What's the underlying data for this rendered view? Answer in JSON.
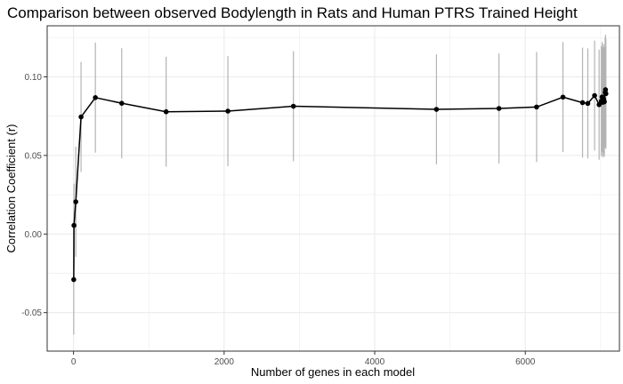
{
  "chart_data": {
    "type": "line",
    "title": "Comparison between observed Bodylength in Rats and Human PTRS Trained Height",
    "xlabel": "Number of genes in each model",
    "ylabel": "Correlation Coefficient (r)",
    "xlim": [
      -350,
      7250
    ],
    "ylim": [
      -0.0745,
      0.1325
    ],
    "x_ticks": [
      0,
      2000,
      4000,
      6000
    ],
    "x_tick_labels": [
      "0",
      "2000",
      "4000",
      "6000"
    ],
    "y_ticks": [
      -0.05,
      0.0,
      0.05,
      0.1
    ],
    "y_tick_labels": [
      "-0.05",
      "0.00",
      "0.05",
      "0.10"
    ],
    "grid": true,
    "colors": {
      "line": "#000000",
      "point": "#000000",
      "errorbar": "#b3b3b3",
      "panel_border": "#333333",
      "grid": "#ebebeb"
    },
    "series": [
      {
        "x": [
          3,
          6,
          30,
          100,
          290,
          640,
          1230,
          2050,
          2920,
          4820,
          5650,
          6150,
          6500,
          6760,
          6830,
          6920,
          6980,
          7010,
          7020,
          7030,
          7040,
          7050,
          7060,
          7065,
          7070
        ],
        "y": [
          -0.029,
          0.0055,
          0.0205,
          0.0745,
          0.0868,
          0.0832,
          0.0778,
          0.0782,
          0.0813,
          0.0793,
          0.0799,
          0.0808,
          0.0871,
          0.0836,
          0.0831,
          0.0881,
          0.0823,
          0.0846,
          0.0872,
          0.0838,
          0.0859,
          0.0842,
          0.0901,
          0.0918,
          0.0893
        ],
        "ymin": [
          -0.064,
          -0.021,
          -0.0145,
          0.0395,
          0.0518,
          0.0482,
          0.0428,
          0.0432,
          0.0463,
          0.0443,
          0.0449,
          0.0458,
          0.0521,
          0.0486,
          0.0481,
          0.0531,
          0.0473,
          0.0496,
          0.0522,
          0.0488,
          0.0509,
          0.0492,
          0.0551,
          0.0568,
          0.0543
        ],
        "ymax": [
          0.007,
          0.032,
          0.0555,
          0.1095,
          0.1218,
          0.1182,
          0.1128,
          0.1132,
          0.1163,
          0.1143,
          0.1149,
          0.1158,
          0.1221,
          0.1186,
          0.1181,
          0.1231,
          0.1173,
          0.1196,
          0.1222,
          0.1188,
          0.1209,
          0.1192,
          0.1251,
          0.1268,
          0.1243
        ]
      }
    ]
  }
}
